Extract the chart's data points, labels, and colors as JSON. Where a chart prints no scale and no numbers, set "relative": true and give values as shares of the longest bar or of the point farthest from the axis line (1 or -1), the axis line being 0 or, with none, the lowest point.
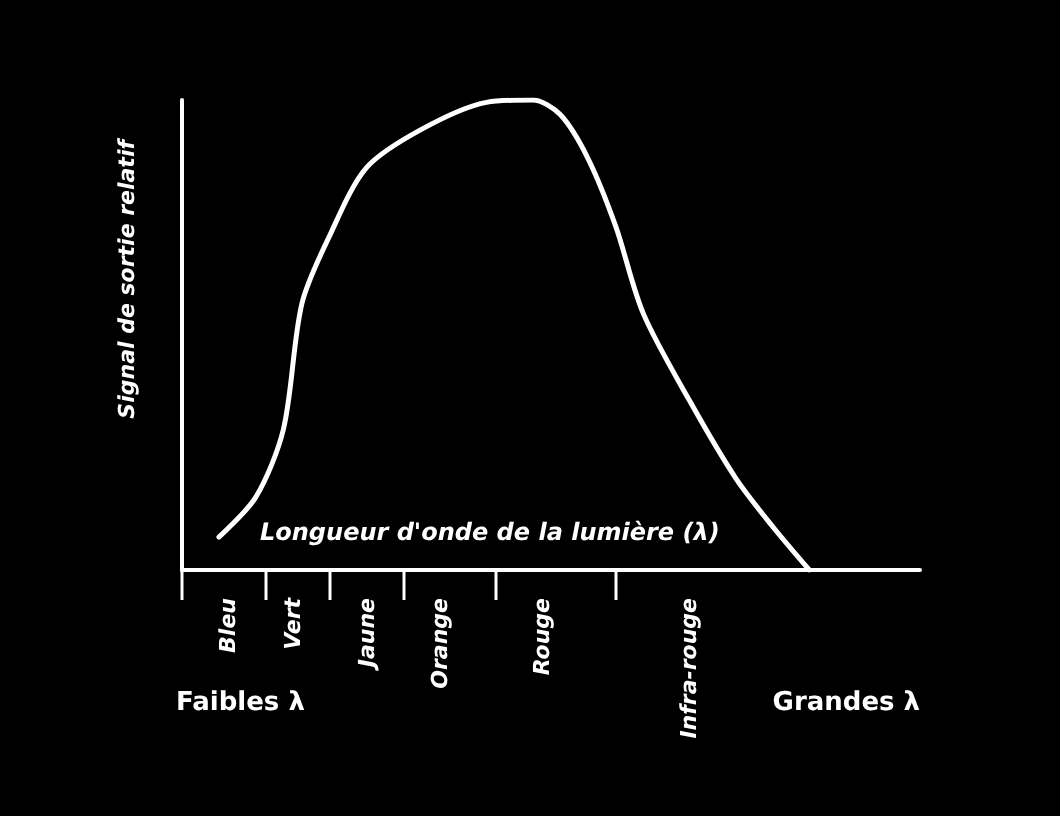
{
  "chart_data": {
    "type": "line",
    "relative": true,
    "marker": "none",
    "xlabel": "Longueur d'onde de la lumière (λ)",
    "ylabel": "Signal de sortie relatif",
    "annotations": [
      "Faibles λ",
      "Grandes λ"
    ],
    "categories": [
      null,
      null,
      null,
      null,
      null,
      "Bleu",
      null,
      null,
      null,
      null,
      null,
      null,
      "Vert",
      null,
      null,
      null,
      null,
      null,
      null,
      null,
      "Jaune",
      null,
      null,
      null,
      null,
      null,
      null,
      null,
      "Orange",
      null,
      null,
      null,
      null,
      null,
      null,
      null,
      null,
      null,
      null,
      "Rouge",
      null,
      null,
      null,
      null,
      null,
      null,
      null,
      null,
      null,
      null,
      null,
      null,
      null,
      null,
      null,
      "Infra-rouge",
      null,
      null,
      null,
      null,
      null,
      null,
      null,
      null,
      null,
      null,
      null,
      null,
      null,
      null,
      null,
      null,
      null,
      null,
      null,
      null,
      null,
      null,
      null,
      null,
      null
    ],
    "series": [
      {
        "color": "#ffffff",
        "values": [
          null,
          null,
          null,
          null,
          0.07,
          null,
          null,
          null,
          0.155,
          null,
          null,
          0.3,
          null,
          0.567,
          null,
          null,
          0.711,
          null,
          null,
          null,
          0.856,
          null,
          null,
          null,
          null,
          null,
          0.938,
          null,
          null,
          null,
          null,
          null,
          null,
          0.995,
          null,
          null,
          null,
          null,
          1.0,
          null,
          null,
          0.969,
          null,
          null,
          0.876,
          null,
          null,
          0.732,
          null,
          null,
          0.546,
          null,
          null,
          null,
          null,
          0.361,
          null,
          null,
          null,
          null,
          0.196,
          null,
          null,
          null,
          0.093,
          null,
          null,
          null,
          0,
          null,
          null,
          null,
          null,
          null,
          null,
          null,
          null,
          null,
          null,
          null,
          null
        ]
      }
    ]
  }
}
